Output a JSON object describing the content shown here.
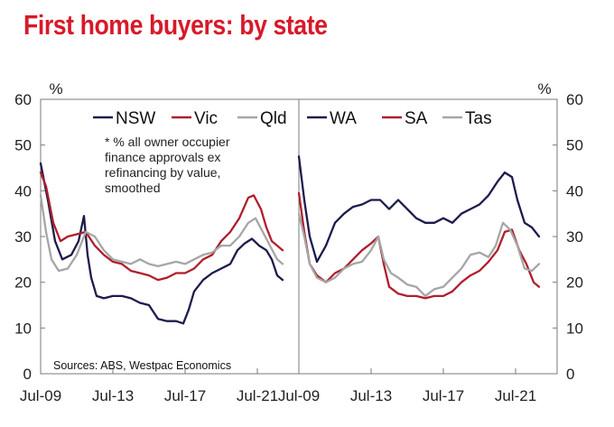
{
  "title": "First home buyers: by state",
  "chart_data": [
    {
      "type": "line",
      "panel": "left",
      "unit_label": "%",
      "ylim": [
        0,
        60
      ],
      "yticks": [
        0,
        10,
        20,
        30,
        40,
        50,
        60
      ],
      "xlim": [
        2009.5,
        2023.8
      ],
      "xticks": [
        {
          "label": "Jul-09",
          "value": 2009.5
        },
        {
          "label": "Jul-13",
          "value": 2013.5
        },
        {
          "label": "Jul-17",
          "value": 2017.5
        },
        {
          "label": "Jul-21",
          "value": 2021.5
        }
      ],
      "note": [
        "* % all owner occupier",
        "finance approvals ex",
        "refinancing by value,",
        "smoothed"
      ],
      "source": "Sources: ABS, Westpac Economics",
      "legend_position": "top",
      "series": [
        {
          "name": "NSW",
          "color": "#1c1b4d",
          "points": [
            [
              2009.5,
              46
            ],
            [
              2009.9,
              38
            ],
            [
              2010.3,
              29
            ],
            [
              2010.7,
              25
            ],
            [
              2011.2,
              26
            ],
            [
              2011.6,
              29
            ],
            [
              2011.9,
              34.5
            ],
            [
              2012.1,
              26
            ],
            [
              2012.3,
              21
            ],
            [
              2012.6,
              17
            ],
            [
              2013.0,
              16.5
            ],
            [
              2013.5,
              17
            ],
            [
              2014.0,
              17
            ],
            [
              2014.5,
              16.5
            ],
            [
              2015.0,
              15.5
            ],
            [
              2015.5,
              15
            ],
            [
              2016.0,
              12
            ],
            [
              2016.5,
              11.5
            ],
            [
              2017.0,
              11.5
            ],
            [
              2017.4,
              11
            ],
            [
              2017.7,
              14
            ],
            [
              2018.0,
              18
            ],
            [
              2018.5,
              20.5
            ],
            [
              2019.0,
              22
            ],
            [
              2019.5,
              23
            ],
            [
              2020.0,
              24
            ],
            [
              2020.4,
              27
            ],
            [
              2020.8,
              28.5
            ],
            [
              2021.2,
              29.5
            ],
            [
              2021.6,
              28
            ],
            [
              2022.0,
              27
            ],
            [
              2022.3,
              25
            ],
            [
              2022.6,
              21.5
            ],
            [
              2022.9,
              20.5
            ]
          ]
        },
        {
          "name": "Vic",
          "color": "#b01e2c",
          "points": [
            [
              2009.5,
              44
            ],
            [
              2009.8,
              41
            ],
            [
              2010.2,
              33
            ],
            [
              2010.6,
              29
            ],
            [
              2011.0,
              30
            ],
            [
              2011.5,
              30.5
            ],
            [
              2012.0,
              31
            ],
            [
              2012.5,
              28
            ],
            [
              2013.0,
              26
            ],
            [
              2013.5,
              24.5
            ],
            [
              2014.0,
              24
            ],
            [
              2014.5,
              22.5
            ],
            [
              2015.0,
              22
            ],
            [
              2015.5,
              21.5
            ],
            [
              2016.0,
              20.5
            ],
            [
              2016.5,
              21
            ],
            [
              2017.0,
              22
            ],
            [
              2017.5,
              22
            ],
            [
              2018.0,
              23
            ],
            [
              2018.5,
              25
            ],
            [
              2019.0,
              26
            ],
            [
              2019.5,
              29
            ],
            [
              2020.0,
              31
            ],
            [
              2020.5,
              34
            ],
            [
              2021.0,
              38.5
            ],
            [
              2021.3,
              39
            ],
            [
              2021.7,
              36
            ],
            [
              2022.0,
              32
            ],
            [
              2022.3,
              29
            ],
            [
              2022.6,
              28
            ],
            [
              2022.9,
              27
            ]
          ]
        },
        {
          "name": "Qld",
          "color": "#a6a6a6",
          "points": [
            [
              2009.5,
              39
            ],
            [
              2009.8,
              31
            ],
            [
              2010.1,
              25
            ],
            [
              2010.5,
              22.5
            ],
            [
              2011.0,
              23
            ],
            [
              2011.5,
              26
            ],
            [
              2012.0,
              31
            ],
            [
              2012.5,
              30
            ],
            [
              2013.0,
              27
            ],
            [
              2013.5,
              25
            ],
            [
              2014.0,
              24.5
            ],
            [
              2014.5,
              24
            ],
            [
              2015.0,
              25
            ],
            [
              2015.5,
              24
            ],
            [
              2016.0,
              23.5
            ],
            [
              2016.5,
              24
            ],
            [
              2017.0,
              24.5
            ],
            [
              2017.5,
              24
            ],
            [
              2018.0,
              25
            ],
            [
              2018.5,
              26
            ],
            [
              2019.0,
              26.5
            ],
            [
              2019.5,
              28
            ],
            [
              2020.0,
              28
            ],
            [
              2020.5,
              30
            ],
            [
              2021.0,
              33
            ],
            [
              2021.4,
              34
            ],
            [
              2021.8,
              31
            ],
            [
              2022.2,
              28
            ],
            [
              2022.6,
              25
            ],
            [
              2022.9,
              24
            ]
          ]
        }
      ]
    },
    {
      "type": "line",
      "panel": "right",
      "unit_label": "%",
      "ylim": [
        0,
        60
      ],
      "yticks": [
        0,
        10,
        20,
        30,
        40,
        50,
        60
      ],
      "xlim": [
        2009.5,
        2023.8
      ],
      "xticks": [
        {
          "label": "Jul-09",
          "value": 2009.5
        },
        {
          "label": "Jul-13",
          "value": 2013.5
        },
        {
          "label": "Jul-17",
          "value": 2017.5
        },
        {
          "label": "Jul-21",
          "value": 2021.5
        }
      ],
      "legend_position": "top",
      "series": [
        {
          "name": "WA",
          "color": "#1c1b4d",
          "points": [
            [
              2009.5,
              47.5
            ],
            [
              2009.8,
              38
            ],
            [
              2010.1,
              30
            ],
            [
              2010.5,
              24.5
            ],
            [
              2011.0,
              28
            ],
            [
              2011.5,
              33
            ],
            [
              2012.0,
              35
            ],
            [
              2012.5,
              36.5
            ],
            [
              2013.0,
              37
            ],
            [
              2013.5,
              38
            ],
            [
              2014.0,
              38
            ],
            [
              2014.5,
              36
            ],
            [
              2015.0,
              38
            ],
            [
              2015.5,
              36
            ],
            [
              2016.0,
              34
            ],
            [
              2016.5,
              33
            ],
            [
              2017.0,
              33
            ],
            [
              2017.5,
              34
            ],
            [
              2018.0,
              33
            ],
            [
              2018.5,
              35
            ],
            [
              2019.0,
              36
            ],
            [
              2019.5,
              37
            ],
            [
              2020.0,
              39
            ],
            [
              2020.5,
              42
            ],
            [
              2020.9,
              44
            ],
            [
              2021.3,
              43
            ],
            [
              2021.6,
              38
            ],
            [
              2022.0,
              33
            ],
            [
              2022.4,
              32
            ],
            [
              2022.8,
              30
            ]
          ]
        },
        {
          "name": "SA",
          "color": "#b01e2c",
          "points": [
            [
              2009.5,
              39.5
            ],
            [
              2009.8,
              31
            ],
            [
              2010.1,
              24
            ],
            [
              2010.5,
              21.5
            ],
            [
              2011.0,
              20
            ],
            [
              2011.5,
              22
            ],
            [
              2012.0,
              23
            ],
            [
              2012.5,
              25
            ],
            [
              2013.0,
              27
            ],
            [
              2013.5,
              28.5
            ],
            [
              2013.9,
              30
            ],
            [
              2014.2,
              24
            ],
            [
              2014.5,
              19
            ],
            [
              2015.0,
              17.5
            ],
            [
              2015.5,
              17
            ],
            [
              2016.0,
              17
            ],
            [
              2016.5,
              16.5
            ],
            [
              2017.0,
              17
            ],
            [
              2017.5,
              17
            ],
            [
              2018.0,
              18
            ],
            [
              2018.5,
              20
            ],
            [
              2019.0,
              21.5
            ],
            [
              2019.5,
              22.5
            ],
            [
              2020.0,
              24.5
            ],
            [
              2020.5,
              27
            ],
            [
              2020.9,
              31
            ],
            [
              2021.3,
              31.5
            ],
            [
              2021.7,
              27
            ],
            [
              2022.1,
              24
            ],
            [
              2022.5,
              20
            ],
            [
              2022.8,
              19
            ]
          ]
        },
        {
          "name": "Tas",
          "color": "#a6a6a6",
          "points": [
            [
              2009.5,
              35
            ],
            [
              2009.8,
              30
            ],
            [
              2010.1,
              24
            ],
            [
              2010.5,
              21
            ],
            [
              2011.0,
              20
            ],
            [
              2011.5,
              21
            ],
            [
              2012.0,
              23
            ],
            [
              2012.5,
              24
            ],
            [
              2013.0,
              24.5
            ],
            [
              2013.5,
              27
            ],
            [
              2013.9,
              30
            ],
            [
              2014.2,
              25
            ],
            [
              2014.6,
              22
            ],
            [
              2015.0,
              21
            ],
            [
              2015.5,
              19.5
            ],
            [
              2016.0,
              19
            ],
            [
              2016.5,
              17
            ],
            [
              2017.0,
              18.5
            ],
            [
              2017.5,
              19
            ],
            [
              2018.0,
              21
            ],
            [
              2018.5,
              23
            ],
            [
              2019.0,
              26
            ],
            [
              2019.5,
              26.5
            ],
            [
              2020.0,
              25.5
            ],
            [
              2020.4,
              28
            ],
            [
              2020.8,
              33
            ],
            [
              2021.2,
              31.5
            ],
            [
              2021.6,
              28
            ],
            [
              2022.0,
              23
            ],
            [
              2022.4,
              22.5
            ],
            [
              2022.8,
              24
            ]
          ]
        }
      ]
    }
  ]
}
